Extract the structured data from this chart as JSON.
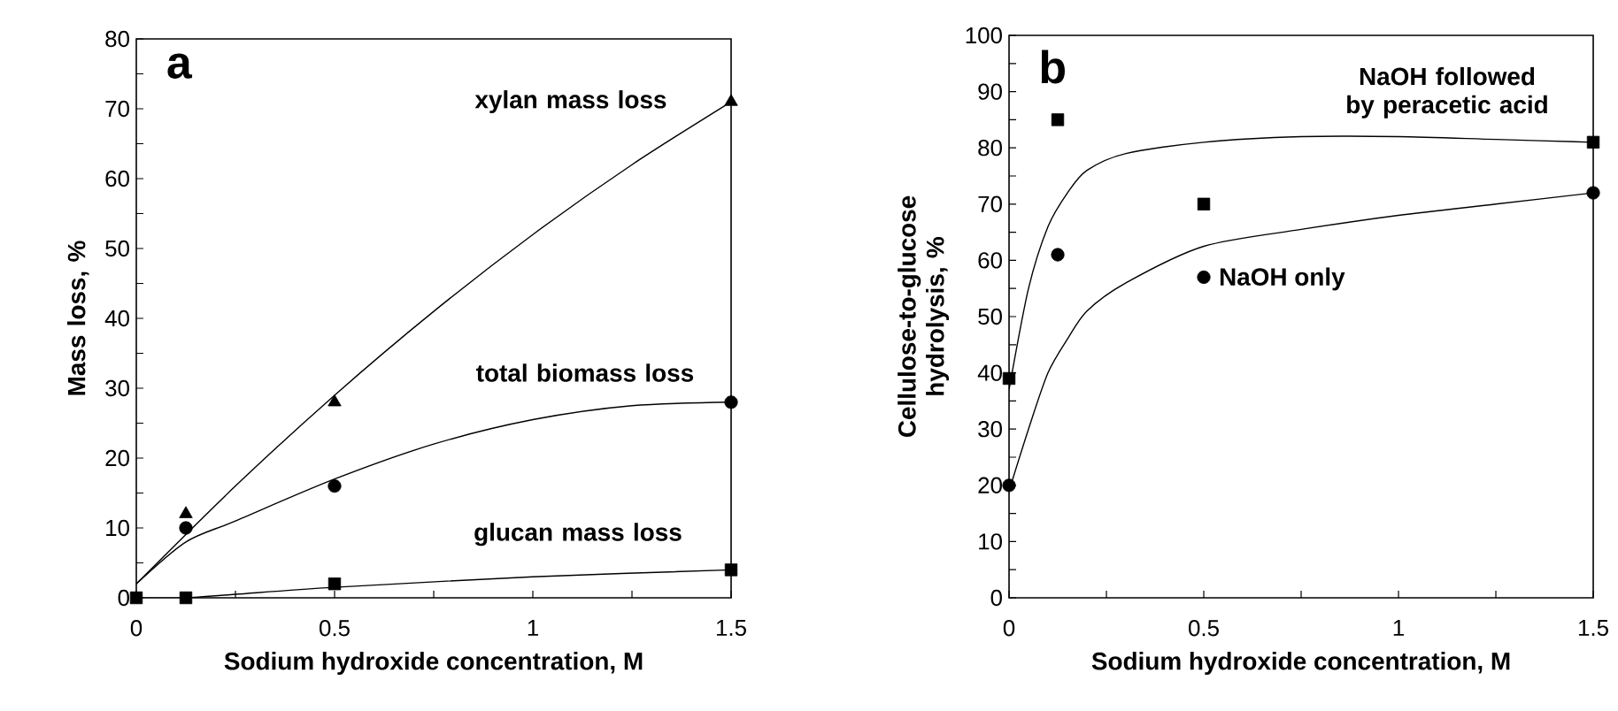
{
  "chart_data": [
    {
      "type": "scatter",
      "xlabel": "Sodium hydroxide concentration, M",
      "ylabel": "Mass loss, %",
      "xlim": [
        0,
        1.5
      ],
      "ylim": [
        0,
        80
      ],
      "xticks": [
        0,
        0.5,
        1,
        1.5
      ],
      "yticks": [
        0,
        10,
        20,
        30,
        40,
        50,
        60,
        70,
        80
      ],
      "annotations": [
        "a"
      ],
      "series": [
        {
          "name": "xylan mass loss",
          "color": "#000000",
          "marker": "triangle",
          "x": [
            0.125,
            0.5,
            1.5
          ],
          "values": [
            12,
            28,
            71
          ]
        },
        {
          "name": "total biomass loss",
          "color": "#000000",
          "marker": "circle",
          "x": [
            0.125,
            0.5,
            1.5
          ],
          "values": [
            10,
            16,
            28
          ]
        },
        {
          "name": "glucan mass loss",
          "color": "#000000",
          "marker": "square",
          "x": [
            0,
            0.125,
            0.5,
            1.5
          ],
          "values": [
            0,
            0,
            2,
            4
          ]
        },
        {
          "type": "line",
          "color": "#000000",
          "marker": "none",
          "line_style": "solid",
          "x": [
            0,
            0.25,
            0.5,
            0.75,
            1,
            1.25,
            1.5
          ],
          "values": [
            2,
            16,
            29,
            41,
            52,
            62,
            71
          ]
        },
        {
          "type": "line",
          "color": "#000000",
          "marker": "none",
          "line_style": "solid",
          "x": [
            0,
            0.125,
            0.25,
            0.5,
            0.75,
            1,
            1.25,
            1.5
          ],
          "values": [
            2,
            8,
            11,
            17,
            22,
            25.5,
            27.5,
            28
          ]
        },
        {
          "type": "line",
          "color": "#000000",
          "marker": "none",
          "line_style": "solid",
          "x": [
            0,
            0.125,
            0.25,
            0.5,
            1,
            1.5
          ],
          "values": [
            0,
            0,
            0.5,
            1.5,
            3,
            4
          ]
        }
      ]
    },
    {
      "type": "scatter",
      "xlabel": "Sodium hydroxide concentration, M",
      "ylabel": "Cellulose-to-glucose hydrolysis, %",
      "xlim": [
        0,
        1.5
      ],
      "ylim": [
        0,
        100
      ],
      "xticks": [
        0,
        0.5,
        1,
        1.5
      ],
      "yticks": [
        0,
        10,
        20,
        30,
        40,
        50,
        60,
        70,
        80,
        90,
        100
      ],
      "annotations": [
        "b"
      ],
      "series": [
        {
          "name": "NaOH followed by peracetic acid",
          "color": "#000000",
          "marker": "square",
          "x": [
            0,
            0.125,
            0.5,
            1.5
          ],
          "values": [
            39,
            85,
            70,
            81
          ]
        },
        {
          "name": "NaOH only",
          "color": "#000000",
          "marker": "circle",
          "x": [
            0,
            0.125,
            0.5,
            1.5
          ],
          "values": [
            20,
            61,
            57,
            72
          ]
        },
        {
          "type": "line",
          "color": "#000000",
          "marker": "none",
          "line_style": "solid",
          "x": [
            0,
            0.05,
            0.1,
            0.15,
            0.2,
            0.3,
            0.5,
            0.75,
            1,
            1.25,
            1.5
          ],
          "values": [
            37,
            55,
            66,
            72,
            76,
            79,
            81,
            82,
            82,
            81.5,
            81
          ]
        },
        {
          "type": "line",
          "color": "#000000",
          "marker": "none",
          "line_style": "solid",
          "x": [
            0,
            0.05,
            0.1,
            0.15,
            0.2,
            0.3,
            0.5,
            0.75,
            1,
            1.25,
            1.5
          ],
          "values": [
            19,
            30,
            40,
            46,
            51,
            56,
            62.5,
            65.5,
            68,
            70,
            72
          ]
        }
      ]
    }
  ]
}
